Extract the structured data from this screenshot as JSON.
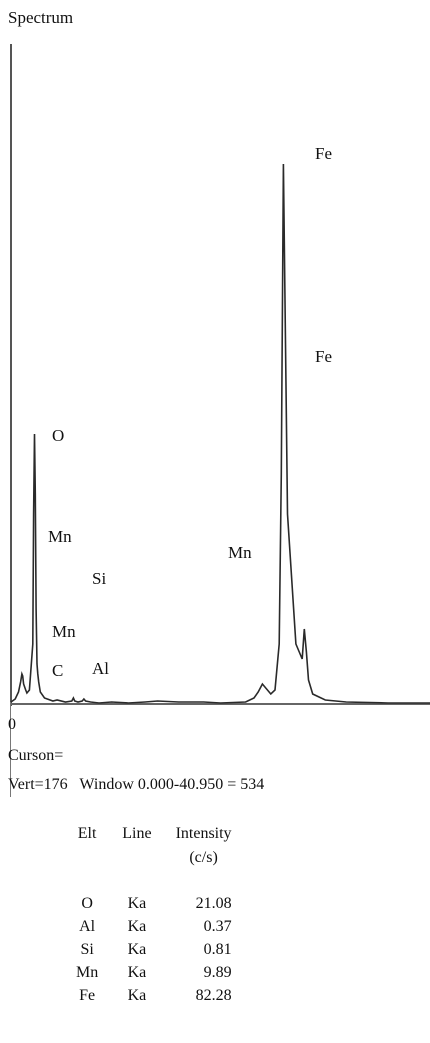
{
  "title": "Spectrum",
  "chart_data": {
    "type": "line",
    "xlabel": "",
    "ylabel": "",
    "peak_labels": [
      "Fe",
      "Fe",
      "O",
      "Mn",
      "Mn",
      "Si",
      "Mn",
      "C",
      "Al"
    ],
    "series": [
      {
        "x": [
          0.0,
          0.1,
          0.18,
          0.23,
          0.26,
          0.28,
          0.3,
          0.35,
          0.38,
          0.44,
          0.52,
          0.54,
          0.56,
          0.58,
          0.6,
          0.62,
          0.64,
          0.66,
          0.7,
          0.8,
          1.0,
          1.1,
          1.3,
          1.45,
          1.49,
          1.52,
          1.6,
          1.7,
          1.74,
          1.78,
          1.9,
          2.1,
          2.4,
          2.8,
          3.2,
          3.5,
          4.0,
          4.6,
          5.0,
          5.6,
          5.8,
          5.9,
          6.0,
          6.2,
          6.3,
          6.4,
          6.45,
          6.5,
          6.6,
          6.8,
          6.95,
          7.0,
          7.05,
          7.1,
          7.2,
          7.5,
          8.0,
          9.0,
          10.0
        ],
        "y": [
          2,
          5,
          12,
          22,
          30,
          28,
          20,
          14,
          11,
          14,
          60,
          190,
          270,
          210,
          95,
          40,
          30,
          22,
          12,
          6,
          3,
          4,
          2,
          3,
          6,
          3,
          2,
          3,
          5,
          3,
          2,
          1,
          2,
          1,
          2,
          3,
          2,
          2,
          1,
          2,
          6,
          12,
          20,
          10,
          14,
          60,
          230,
          540,
          190,
          60,
          45,
          75,
          52,
          24,
          10,
          4,
          2,
          1,
          1
        ]
      }
    ]
  },
  "status": {
    "zero": "0",
    "cursor": "Curson=",
    "vert": "Vert=176",
    "window": "Window 0.000-40.950 = 534"
  },
  "table": {
    "headers": [
      "Elt",
      "Line",
      "Intensity"
    ],
    "intensity_unit": "(c/s)",
    "rows": [
      {
        "elt": "O",
        "line": "Ka",
        "intensity": "21.08"
      },
      {
        "elt": "Al",
        "line": "Ka",
        "intensity": "0.37"
      },
      {
        "elt": "Si",
        "line": "Ka",
        "intensity": "0.81"
      },
      {
        "elt": "Mn",
        "line": "Ka",
        "intensity": "9.89"
      },
      {
        "elt": "Fe",
        "line": "Ka",
        "intensity": "82.28"
      }
    ]
  }
}
